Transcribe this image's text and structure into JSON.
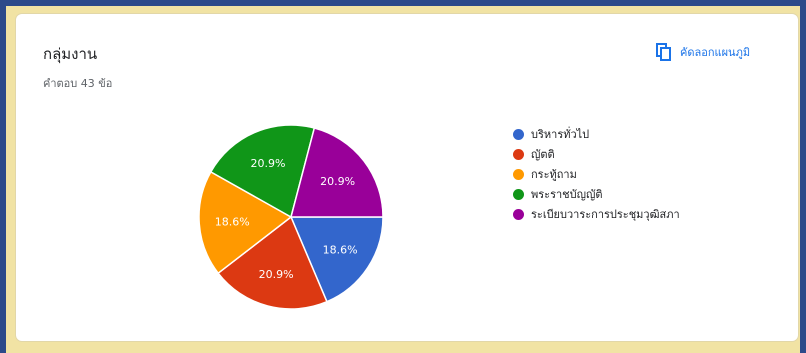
{
  "header": {
    "title": "กลุ่มงาน",
    "responses": "คำตอบ 43 ข้อ",
    "copy_label": "คัดลอกแผนภูมิ",
    "copy_icon": "copy-icon"
  },
  "chart_data": {
    "type": "pie",
    "title": "กลุ่มงาน",
    "labels": [
      "บริหารทั่วไป",
      "ญัตติ",
      "กระทู้ถาม",
      "พระราชบัญญัติ",
      "ระเบียบวาระการประชุมวุฒิสภา"
    ],
    "values": [
      18.6,
      20.9,
      18.6,
      20.9,
      20.9
    ],
    "value_labels": [
      "18.6%",
      "20.9%",
      "18.6%",
      "20.9%",
      "20.9%"
    ],
    "colors": [
      "#3366cc",
      "#dc3912",
      "#ff9900",
      "#109618",
      "#990099"
    ],
    "legend_position": "right"
  }
}
